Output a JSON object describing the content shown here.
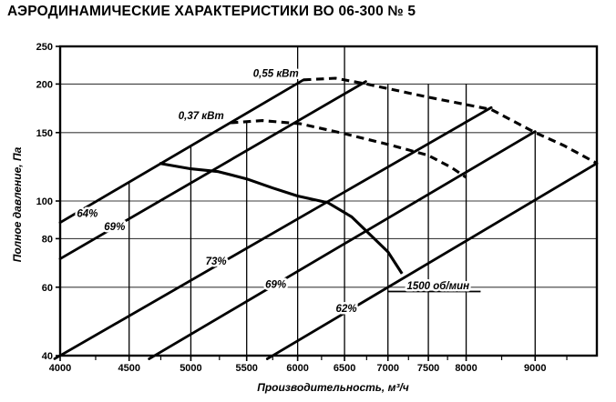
{
  "title": "АЭРОДИНАМИЧЕСКИЕ ХАРАКТЕРИСТИКИ ВО 06-300  № 5",
  "chart_data": {
    "type": "line",
    "title": "АЭРОДИНАМИЧЕСКИЕ ХАРАКТЕРИСТИКИ ВО 06-300 № 5",
    "x_scale": "log",
    "y_scale": "log",
    "xlim": [
      4000,
      10000
    ],
    "ylim": [
      40,
      250
    ],
    "grid": "on",
    "x_axis": {
      "label": "Производительность, м³/ч",
      "ticks": [
        {
          "q": 4000,
          "label": "4000"
        },
        {
          "q": 4500,
          "label": "4500"
        },
        {
          "q": 5000,
          "label": "5000"
        },
        {
          "q": 5500,
          "label": "5500"
        },
        {
          "q": 6000,
          "label": "6000"
        },
        {
          "q": 6500,
          "label": "6500"
        },
        {
          "q": 7000,
          "label": "7000"
        },
        {
          "q": 7500,
          "label": "7500"
        },
        {
          "q": 8000,
          "label": "8000"
        },
        {
          "q": 9000,
          "label": "9000"
        }
      ],
      "minor_ticks": [
        4250,
        4750,
        5250,
        5750,
        6250,
        6750,
        7250,
        7750,
        8500,
        9500
      ]
    },
    "y_axis": {
      "label": "Полное давление, Па",
      "ticks": [
        {
          "p": 250,
          "label": "250"
        },
        {
          "p": 200,
          "label": "200"
        },
        {
          "p": 150,
          "label": "150"
        },
        {
          "p": 100,
          "label": "100"
        },
        {
          "p": 80,
          "label": "80"
        },
        {
          "p": 60,
          "label": "60"
        },
        {
          "p": 40,
          "label": "40"
        }
      ]
    },
    "gridlines": {
      "horizontal_p": [
        60,
        80,
        100,
        150,
        200
      ],
      "vertical": [
        {
          "q": 4500,
          "p_top": 112
        },
        {
          "q": 5000,
          "p_top": 139
        },
        {
          "q": 5500,
          "p_top": 159
        },
        {
          "q": 6000,
          "p_top": 250
        },
        {
          "q": 6500,
          "p_top": 250
        },
        {
          "q": 7000,
          "p_top": 200
        },
        {
          "q": 7500,
          "p_top": 200
        },
        {
          "q": 8000,
          "p_top": 200
        },
        {
          "q": 9000,
          "p_top": 150
        }
      ]
    },
    "series": [
      {
        "id": "fan-curve-1500rpm",
        "name": "1500 об/мин",
        "line": "solid",
        "points": [
          [
            4740,
            125
          ],
          [
            5000,
            121
          ],
          [
            5240,
            119
          ],
          [
            5500,
            114
          ],
          [
            5750,
            108
          ],
          [
            6000,
            103
          ],
          [
            6320,
            99
          ],
          [
            6580,
            91
          ],
          [
            7000,
            74
          ],
          [
            7170,
            65
          ]
        ],
        "label": {
          "text": "1500 об/мин",
          "q": 7230,
          "p": 60.5,
          "anchor": "start",
          "underline": {
            "q1": 7000,
            "q2": 8200,
            "p": 58.5
          }
        }
      },
      {
        "id": "power-curve-0-37kw",
        "name": "0,37 кВт",
        "line": "dashed",
        "points": [
          [
            5350,
            159
          ],
          [
            5650,
            161
          ],
          [
            6030,
            158
          ],
          [
            6500,
            149
          ],
          [
            7050,
            139
          ],
          [
            7500,
            131
          ],
          [
            7800,
            122
          ],
          [
            8000,
            115
          ]
        ],
        "label": {
          "text": "0,37 кВт",
          "q": 5290,
          "p": 166,
          "anchor": "end"
        }
      },
      {
        "id": "power-curve-0-55kw",
        "name": "0,55 кВт",
        "line": "dashed",
        "points": [
          [
            6060,
            205
          ],
          [
            6400,
            207
          ],
          [
            6750,
            200
          ],
          [
            7500,
            185
          ],
          [
            8350,
            172
          ],
          [
            9000,
            150
          ],
          [
            9450,
            139
          ],
          [
            10000,
            125
          ]
        ],
        "label": {
          "text": "0,55 кВт",
          "q": 6010,
          "p": 213,
          "anchor": "end"
        }
      }
    ],
    "efficiency_lines": [
      {
        "label": "64%",
        "from": [
          4000,
          88
        ],
        "to": [
          6060,
          205
        ],
        "label_q": 4190,
        "label_p": 93
      },
      {
        "label": "69%",
        "from": [
          4000,
          71
        ],
        "to": [
          6740,
          203
        ],
        "label_q": 4390,
        "label_p": 86
      },
      {
        "label": "73%",
        "from": [
          4000,
          40
        ],
        "to": [
          8350,
          174
        ],
        "label_q": 5220,
        "label_p": 70
      },
      {
        "label": "69%",
        "from": [
          4700,
          40
        ],
        "to": [
          9000,
          151
        ],
        "label_q": 5780,
        "label_p": 61
      },
      {
        "label": "62%",
        "from": [
          5750,
          40
        ],
        "to": [
          10000,
          125
        ],
        "label_q": 6520,
        "label_p": 53
      }
    ],
    "colors": {
      "ink": "#000000",
      "grid_horizontal": "#3d3d3d",
      "background": "#ffffff"
    }
  }
}
